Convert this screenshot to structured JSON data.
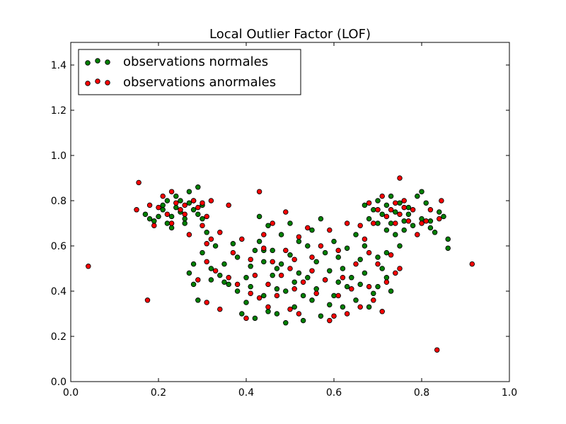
{
  "chart_data": {
    "type": "scatter",
    "title": "Local Outlier Factor (LOF)",
    "xlabel": "",
    "ylabel": "",
    "xlim": [
      0.0,
      1.0
    ],
    "ylim": [
      0.0,
      1.5
    ],
    "x_ticks": [
      "0.0",
      "0.2",
      "0.4",
      "0.6",
      "0.8",
      "1.0"
    ],
    "y_ticks": [
      "0.0",
      "0.2",
      "0.4",
      "0.6",
      "0.8",
      "1.0",
      "1.2",
      "1.4"
    ],
    "grid": false,
    "legend_position": "top-left",
    "series": [
      {
        "name": "observations normales",
        "color": "#008000",
        "points": [
          [
            0.18,
            0.72
          ],
          [
            0.19,
            0.71
          ],
          [
            0.2,
            0.73
          ],
          [
            0.21,
            0.78
          ],
          [
            0.22,
            0.8
          ],
          [
            0.22,
            0.7
          ],
          [
            0.23,
            0.68
          ],
          [
            0.24,
            0.77
          ],
          [
            0.24,
            0.82
          ],
          [
            0.25,
            0.8
          ],
          [
            0.25,
            0.75
          ],
          [
            0.26,
            0.72
          ],
          [
            0.26,
            0.7
          ],
          [
            0.27,
            0.79
          ],
          [
            0.28,
            0.8
          ],
          [
            0.28,
            0.76
          ],
          [
            0.29,
            0.86
          ],
          [
            0.29,
            0.74
          ],
          [
            0.3,
            0.72
          ],
          [
            0.31,
            0.66
          ],
          [
            0.17,
            0.74
          ],
          [
            0.21,
            0.76
          ],
          [
            0.23,
            0.73
          ],
          [
            0.27,
            0.84
          ],
          [
            0.3,
            0.78
          ],
          [
            0.27,
            0.48
          ],
          [
            0.28,
            0.43
          ],
          [
            0.28,
            0.52
          ],
          [
            0.29,
            0.36
          ],
          [
            0.3,
            0.57
          ],
          [
            0.32,
            0.5
          ],
          [
            0.32,
            0.45
          ],
          [
            0.33,
            0.6
          ],
          [
            0.34,
            0.47
          ],
          [
            0.35,
            0.44
          ],
          [
            0.36,
            0.43
          ],
          [
            0.37,
            0.61
          ],
          [
            0.38,
            0.4
          ],
          [
            0.38,
            0.55
          ],
          [
            0.39,
            0.3
          ],
          [
            0.4,
            0.35
          ],
          [
            0.41,
            0.42
          ],
          [
            0.41,
            0.51
          ],
          [
            0.42,
            0.58
          ],
          [
            0.42,
            0.28
          ],
          [
            0.43,
            0.73
          ],
          [
            0.43,
            0.62
          ],
          [
            0.44,
            0.53
          ],
          [
            0.44,
            0.38
          ],
          [
            0.45,
            0.31
          ],
          [
            0.45,
            0.69
          ],
          [
            0.46,
            0.47
          ],
          [
            0.46,
            0.58
          ],
          [
            0.47,
            0.41
          ],
          [
            0.47,
            0.3
          ],
          [
            0.48,
            0.65
          ],
          [
            0.48,
            0.52
          ],
          [
            0.49,
            0.4
          ],
          [
            0.49,
            0.26
          ],
          [
            0.5,
            0.7
          ],
          [
            0.5,
            0.56
          ],
          [
            0.51,
            0.44
          ],
          [
            0.51,
            0.33
          ],
          [
            0.52,
            0.62
          ],
          [
            0.52,
            0.48
          ],
          [
            0.53,
            0.38
          ],
          [
            0.53,
            0.27
          ],
          [
            0.54,
            0.6
          ],
          [
            0.54,
            0.46
          ],
          [
            0.55,
            0.36
          ],
          [
            0.55,
            0.67
          ],
          [
            0.56,
            0.53
          ],
          [
            0.56,
            0.41
          ],
          [
            0.57,
            0.29
          ],
          [
            0.57,
            0.72
          ],
          [
            0.58,
            0.57
          ],
          [
            0.58,
            0.45
          ],
          [
            0.59,
            0.34
          ],
          [
            0.59,
            0.49
          ],
          [
            0.6,
            0.62
          ],
          [
            0.6,
            0.38
          ],
          [
            0.61,
            0.44
          ],
          [
            0.61,
            0.55
          ],
          [
            0.62,
            0.33
          ],
          [
            0.62,
            0.5
          ],
          [
            0.63,
            0.42
          ],
          [
            0.63,
            0.59
          ],
          [
            0.64,
            0.46
          ],
          [
            0.65,
            0.65
          ],
          [
            0.65,
            0.36
          ],
          [
            0.66,
            0.54
          ],
          [
            0.66,
            0.43
          ],
          [
            0.67,
            0.6
          ],
          [
            0.67,
            0.48
          ],
          [
            0.68,
            0.33
          ],
          [
            0.69,
            0.39
          ],
          [
            0.7,
            0.55
          ],
          [
            0.7,
            0.42
          ],
          [
            0.71,
            0.5
          ],
          [
            0.72,
            0.57
          ],
          [
            0.72,
            0.46
          ],
          [
            0.73,
            0.4
          ],
          [
            0.35,
            0.52
          ],
          [
            0.4,
            0.46
          ],
          [
            0.44,
            0.58
          ],
          [
            0.47,
            0.5
          ],
          [
            0.67,
            0.78
          ],
          [
            0.68,
            0.72
          ],
          [
            0.69,
            0.76
          ],
          [
            0.7,
            0.7
          ],
          [
            0.7,
            0.8
          ],
          [
            0.71,
            0.74
          ],
          [
            0.72,
            0.67
          ],
          [
            0.72,
            0.78
          ],
          [
            0.73,
            0.82
          ],
          [
            0.73,
            0.7
          ],
          [
            0.74,
            0.75
          ],
          [
            0.74,
            0.65
          ],
          [
            0.75,
            0.79
          ],
          [
            0.76,
            0.71
          ],
          [
            0.76,
            0.67
          ],
          [
            0.77,
            0.74
          ],
          [
            0.78,
            0.69
          ],
          [
            0.79,
            0.82
          ],
          [
            0.8,
            0.84
          ],
          [
            0.8,
            0.72
          ],
          [
            0.81,
            0.79
          ],
          [
            0.82,
            0.71
          ],
          [
            0.83,
            0.66
          ],
          [
            0.84,
            0.75
          ],
          [
            0.85,
            0.73
          ],
          [
            0.86,
            0.63
          ],
          [
            0.86,
            0.59
          ],
          [
            0.75,
            0.6
          ],
          [
            0.77,
            0.77
          ],
          [
            0.82,
            0.68
          ]
        ]
      },
      {
        "name": "observations anormales",
        "color": "#ff0000",
        "points": [
          [
            0.04,
            0.51
          ],
          [
            0.15,
            0.76
          ],
          [
            0.155,
            0.88
          ],
          [
            0.175,
            0.36
          ],
          [
            0.915,
            0.52
          ],
          [
            0.835,
            0.14
          ],
          [
            0.18,
            0.78
          ],
          [
            0.19,
            0.69
          ],
          [
            0.2,
            0.77
          ],
          [
            0.21,
            0.82
          ],
          [
            0.22,
            0.74
          ],
          [
            0.23,
            0.84
          ],
          [
            0.23,
            0.7
          ],
          [
            0.24,
            0.79
          ],
          [
            0.25,
            0.76
          ],
          [
            0.26,
            0.74
          ],
          [
            0.26,
            0.78
          ],
          [
            0.27,
            0.65
          ],
          [
            0.28,
            0.8
          ],
          [
            0.29,
            0.77
          ],
          [
            0.3,
            0.69
          ],
          [
            0.3,
            0.79
          ],
          [
            0.31,
            0.73
          ],
          [
            0.31,
            0.61
          ],
          [
            0.32,
            0.63
          ],
          [
            0.32,
            0.8
          ],
          [
            0.34,
            0.66
          ],
          [
            0.29,
            0.45
          ],
          [
            0.31,
            0.53
          ],
          [
            0.31,
            0.35
          ],
          [
            0.33,
            0.49
          ],
          [
            0.34,
            0.32
          ],
          [
            0.36,
            0.78
          ],
          [
            0.36,
            0.46
          ],
          [
            0.37,
            0.57
          ],
          [
            0.38,
            0.43
          ],
          [
            0.39,
            0.63
          ],
          [
            0.4,
            0.28
          ],
          [
            0.41,
            0.54
          ],
          [
            0.41,
            0.39
          ],
          [
            0.42,
            0.47
          ],
          [
            0.43,
            0.37
          ],
          [
            0.43,
            0.84
          ],
          [
            0.44,
            0.59
          ],
          [
            0.44,
            0.65
          ],
          [
            0.45,
            0.43
          ],
          [
            0.45,
            0.33
          ],
          [
            0.46,
            0.7
          ],
          [
            0.46,
            0.53
          ],
          [
            0.47,
            0.38
          ],
          [
            0.48,
            0.47
          ],
          [
            0.49,
            0.58
          ],
          [
            0.49,
            0.75
          ],
          [
            0.5,
            0.32
          ],
          [
            0.5,
            0.5
          ],
          [
            0.51,
            0.41
          ],
          [
            0.51,
            0.54
          ],
          [
            0.52,
            0.64
          ],
          [
            0.52,
            0.3
          ],
          [
            0.53,
            0.44
          ],
          [
            0.54,
            0.68
          ],
          [
            0.55,
            0.49
          ],
          [
            0.55,
            0.55
          ],
          [
            0.56,
            0.39
          ],
          [
            0.57,
            0.6
          ],
          [
            0.58,
            0.45
          ],
          [
            0.59,
            0.27
          ],
          [
            0.59,
            0.67
          ],
          [
            0.6,
            0.29
          ],
          [
            0.61,
            0.38
          ],
          [
            0.61,
            0.58
          ],
          [
            0.62,
            0.46
          ],
          [
            0.63,
            0.7
          ],
          [
            0.63,
            0.3
          ],
          [
            0.64,
            0.41
          ],
          [
            0.65,
            0.52
          ],
          [
            0.66,
            0.33
          ],
          [
            0.67,
            0.63
          ],
          [
            0.68,
            0.57
          ],
          [
            0.68,
            0.42
          ],
          [
            0.69,
            0.36
          ],
          [
            0.7,
            0.52
          ],
          [
            0.71,
            0.31
          ],
          [
            0.72,
            0.44
          ],
          [
            0.73,
            0.56
          ],
          [
            0.74,
            0.48
          ],
          [
            0.75,
            0.5
          ],
          [
            0.66,
            0.69
          ],
          [
            0.68,
            0.79
          ],
          [
            0.69,
            0.7
          ],
          [
            0.7,
            0.76
          ],
          [
            0.71,
            0.82
          ],
          [
            0.72,
            0.73
          ],
          [
            0.73,
            0.76
          ],
          [
            0.74,
            0.7
          ],
          [
            0.74,
            0.79
          ],
          [
            0.75,
            0.9
          ],
          [
            0.75,
            0.74
          ],
          [
            0.76,
            0.77
          ],
          [
            0.76,
            0.8
          ],
          [
            0.77,
            0.71
          ],
          [
            0.78,
            0.76
          ],
          [
            0.79,
            0.65
          ],
          [
            0.8,
            0.7
          ],
          [
            0.81,
            0.71
          ],
          [
            0.82,
            0.76
          ],
          [
            0.84,
            0.72
          ],
          [
            0.845,
            0.8
          ]
        ]
      }
    ]
  }
}
